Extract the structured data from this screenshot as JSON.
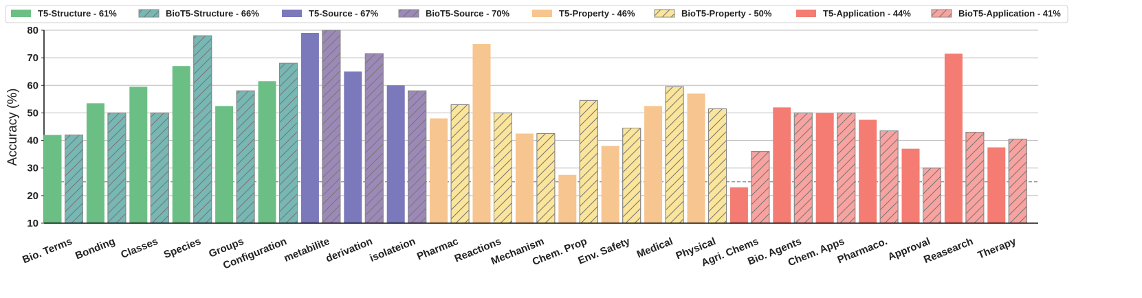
{
  "chart_data": {
    "type": "bar",
    "title": "",
    "xlabel": "",
    "ylabel": "Accuracy (%)",
    "ylim": [
      10,
      80
    ],
    "yticks": [
      10,
      20,
      30,
      40,
      50,
      60,
      70,
      80
    ],
    "grid": "horizontal",
    "baseline": 25,
    "legend_position": "top",
    "colors": {
      "structure_t5": "#6cbf84",
      "structure_biot5": "#77b7b4",
      "source_t5": "#7b78bc",
      "source_biot5": "#9c89b8",
      "property_t5": "#f7c58f",
      "property_biot5": "#fbe59a",
      "application_t5": "#f47c72",
      "application_biot5": "#f8a3a0",
      "hatch": "#777777",
      "grid": "#bbbbbb",
      "baseline": "#888888"
    },
    "legend": [
      {
        "label": "T5-Structure - 61%",
        "group": "structure",
        "model": "t5"
      },
      {
        "label": "BioT5-Structure - 66%",
        "group": "structure",
        "model": "biot5"
      },
      {
        "label": "T5-Source - 67%",
        "group": "source",
        "model": "t5"
      },
      {
        "label": "BioT5-Source - 70%",
        "group": "source",
        "model": "biot5"
      },
      {
        "label": "T5-Property - 46%",
        "group": "property",
        "model": "t5"
      },
      {
        "label": "BioT5-Property - 50%",
        "group": "property",
        "model": "biot5"
      },
      {
        "label": "T5-Application - 44%",
        "group": "application",
        "model": "t5"
      },
      {
        "label": "BioT5-Application - 41%",
        "group": "application",
        "model": "biot5"
      }
    ],
    "categories": [
      {
        "label": "Bio. Terms",
        "group": "structure",
        "t5": 42,
        "biot5": 42
      },
      {
        "label": "Bonding",
        "group": "structure",
        "t5": 53.5,
        "biot5": 50
      },
      {
        "label": "Classes",
        "group": "structure",
        "t5": 59.5,
        "biot5": 50
      },
      {
        "label": "Species",
        "group": "structure",
        "t5": 67,
        "biot5": 78
      },
      {
        "label": "Groups",
        "group": "structure",
        "t5": 52.5,
        "biot5": 58
      },
      {
        "label": "Configuration",
        "group": "structure",
        "t5": 61.5,
        "biot5": 68
      },
      {
        "label": "metabilite",
        "group": "source",
        "t5": 79,
        "biot5": 80
      },
      {
        "label": "derivation",
        "group": "source",
        "t5": 65,
        "biot5": 71.5
      },
      {
        "label": "isolateion",
        "group": "source",
        "t5": 60,
        "biot5": 58
      },
      {
        "label": "Pharmac",
        "group": "property",
        "t5": 48,
        "biot5": 53
      },
      {
        "label": "Reactions",
        "group": "property",
        "t5": 75,
        "biot5": 50
      },
      {
        "label": "Mechanism",
        "group": "property",
        "t5": 42.5,
        "biot5": 42.5
      },
      {
        "label": "Chem. Prop",
        "group": "property",
        "t5": 27.5,
        "biot5": 54.5
      },
      {
        "label": "Env. Safety",
        "group": "property",
        "t5": 38,
        "biot5": 44.5
      },
      {
        "label": "Medical",
        "group": "property",
        "t5": 52.5,
        "biot5": 59.5
      },
      {
        "label": "Physical",
        "group": "property",
        "t5": 57,
        "biot5": 51.5
      },
      {
        "label": "Agri. Chems",
        "group": "application",
        "t5": 23,
        "biot5": 36
      },
      {
        "label": "Bio. Agents",
        "group": "application",
        "t5": 52,
        "biot5": 50
      },
      {
        "label": "Chem. Apps",
        "group": "application",
        "t5": 50,
        "biot5": 50
      },
      {
        "label": "Pharmaco.",
        "group": "application",
        "t5": 47.5,
        "biot5": 43.5
      },
      {
        "label": "Approval",
        "group": "application",
        "t5": 37,
        "biot5": 30
      },
      {
        "label": "Reasearch",
        "group": "application",
        "t5": 71.5,
        "biot5": 43
      },
      {
        "label": "Therapy",
        "group": "application",
        "t5": 37.5,
        "biot5": 40.5
      }
    ]
  }
}
